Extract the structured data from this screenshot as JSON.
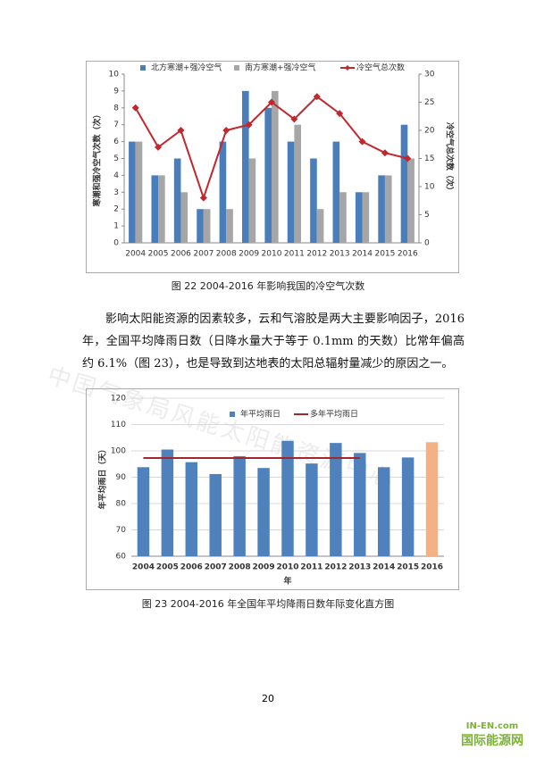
{
  "chart_data": [
    {
      "type": "bar",
      "caption": "图 22 2004-2016 年影响我国的冷空气次数",
      "y_label": "寒潮和强冷空气次数（次）",
      "y2_label": "冷空气总次数（次）",
      "categories": [
        "2004",
        "2005",
        "2006",
        "2007",
        "2008",
        "2009",
        "2010",
        "2011",
        "2012",
        "2013",
        "2014",
        "2015",
        "2016"
      ],
      "series": [
        {
          "name": "北方寒潮+强冷空气",
          "kind": "bar",
          "color": "#4a7ebb",
          "values": [
            6,
            4,
            5,
            2,
            6,
            9,
            8,
            6,
            5,
            6,
            3,
            4,
            7
          ]
        },
        {
          "name": "南方寒潮+强冷空气",
          "kind": "bar",
          "color": "#a6a6a6",
          "values": [
            6,
            4,
            3,
            2,
            2,
            5,
            9,
            7,
            2,
            3,
            3,
            4,
            5
          ]
        },
        {
          "name": "冷空气总次数",
          "kind": "line",
          "axis": "y2",
          "color": "#c0282d",
          "markers": true,
          "values": [
            24,
            17,
            20,
            8,
            20,
            21,
            25,
            22,
            26,
            23,
            18,
            16,
            15
          ]
        }
      ],
      "ylim": [
        0,
        10
      ],
      "yticks": [
        0,
        1,
        2,
        3,
        4,
        5,
        6,
        7,
        8,
        9,
        10
      ],
      "y2lim": [
        0,
        30
      ],
      "y2ticks": [
        0,
        5,
        10,
        15,
        20,
        25,
        30
      ],
      "legend": "top"
    },
    {
      "type": "bar",
      "caption": "图 23    2004-2016 年全国年平均降雨日数年际变化直方图",
      "x_label": "年",
      "y_label": "年平均雨日（天）",
      "categories": [
        "2004",
        "2005",
        "2006",
        "2007",
        "2008",
        "2009",
        "2010",
        "2011",
        "2012",
        "2013",
        "2014",
        "2015",
        "2016"
      ],
      "series": [
        {
          "name": "年平均雨日",
          "kind": "bar",
          "color": "#4f81bd",
          "colors": [
            "#4f81bd",
            "#4f81bd",
            "#4f81bd",
            "#4f81bd",
            "#4f81bd",
            "#4f81bd",
            "#4f81bd",
            "#4f81bd",
            "#4f81bd",
            "#4f81bd",
            "#4f81bd",
            "#4f81bd",
            "#f4b183"
          ],
          "values": [
            93.8,
            100.5,
            95.7,
            91.2,
            98,
            93.5,
            103.8,
            95.2,
            103,
            99.2,
            93.8,
            97.5,
            103.3
          ]
        },
        {
          "name": "多年平均雨日",
          "kind": "line",
          "color": "#a0282d",
          "markers": false,
          "values": [
            97.3,
            97.3,
            97.3,
            97.3,
            97.3,
            97.3,
            97.3,
            97.3,
            97.3,
            97.3,
            null,
            null,
            null
          ]
        }
      ],
      "ylim": [
        60,
        120
      ],
      "yticks": [
        60,
        70,
        80,
        90,
        100,
        110,
        120
      ],
      "legend": "top-right"
    }
  ],
  "paragraph": "影响太阳能资源的因素较多，云和气溶胶是两大主要影响因子，2016 年，全国平均降雨日数（日降水量大于等于 0.1mm 的天数）比常年偏高约 6.1%（图 23），也是导致到达地表的太阳总辐射量减少的原因之一。",
  "watermark": "中国气象局风能太阳能资源中心",
  "page_number": "20",
  "logo": {
    "site": "IN-EN.com",
    "name": "国际能源网"
  }
}
